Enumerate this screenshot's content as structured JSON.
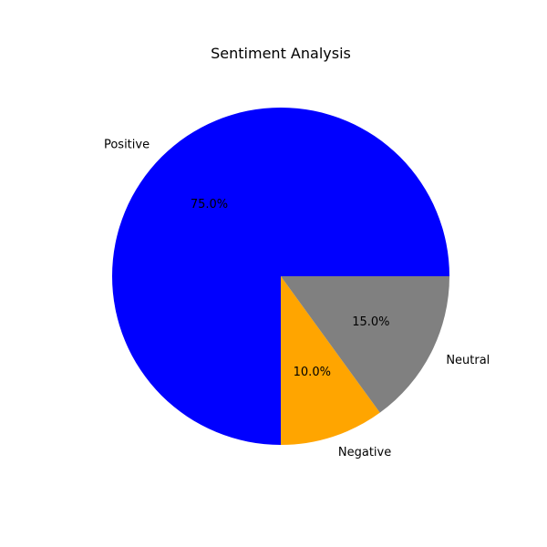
{
  "chart_data": {
    "type": "pie",
    "title": "Sentiment Analysis",
    "categories": [
      "Positive",
      "Negative",
      "Neutral"
    ],
    "values": [
      75.0,
      10.0,
      15.0
    ],
    "percent_labels": [
      "75.0%",
      "10.0%",
      "15.0%"
    ],
    "colors": [
      "#0000ff",
      "#ffa500",
      "#808080"
    ],
    "start_angle": 0,
    "direction": "counterclockwise",
    "legend": "none"
  }
}
